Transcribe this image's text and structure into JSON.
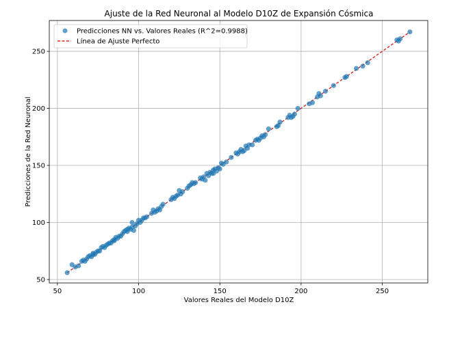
{
  "chart_data": {
    "type": "scatter",
    "title": "Ajuste de la Red Neuronal al Modelo D10Z de Expansión Cósmica",
    "xlabel": "Valores Reales del Modelo D10Z",
    "ylabel": "Predicciones de la Red Neuronal",
    "xlim": [
      45,
      278
    ],
    "ylim": [
      47,
      277
    ],
    "xticks": [
      50,
      100,
      150,
      200,
      250
    ],
    "yticks": [
      50,
      100,
      150,
      200,
      250
    ],
    "grid": true,
    "legend_position": "top-left",
    "series": [
      {
        "name": "Predicciones NN vs. Valores Reales (R^2=0.9988)",
        "kind": "scatter",
        "color": "#1f77b4",
        "x": [
          56,
          59,
          61,
          63,
          65,
          66,
          67,
          68,
          69,
          70,
          71,
          72,
          72,
          73,
          74,
          75,
          76,
          77,
          78,
          79,
          80,
          81,
          82,
          83,
          84,
          85,
          85,
          86,
          87,
          88,
          89,
          90,
          91,
          92,
          93,
          93,
          94,
          95,
          96,
          96,
          97,
          98,
          99,
          100,
          101,
          102,
          103,
          104,
          105,
          108,
          109,
          110,
          111,
          112,
          113,
          114,
          115,
          120,
          121,
          122,
          123,
          124,
          125,
          126,
          127,
          130,
          131,
          132,
          133,
          134,
          135,
          138,
          139,
          140,
          141,
          142,
          143,
          144,
          145,
          146,
          146,
          147,
          148,
          149,
          150,
          151,
          152,
          154,
          157,
          160,
          161,
          162,
          163,
          164,
          165,
          166,
          167,
          168,
          170,
          172,
          173,
          174,
          175,
          176,
          177,
          178,
          180,
          185,
          186,
          187,
          192,
          193,
          194,
          195,
          196,
          198,
          205,
          207,
          210,
          211,
          212,
          215,
          220,
          227,
          228,
          234,
          238,
          241,
          259,
          260,
          261,
          267
        ],
        "y": [
          56,
          63,
          61,
          62,
          66,
          67,
          66,
          68,
          70,
          71,
          70,
          72,
          73,
          72,
          74,
          75,
          75,
          78,
          79,
          78,
          80,
          81,
          82,
          82,
          84,
          85,
          84,
          87,
          86,
          88,
          88,
          90,
          92,
          93,
          94,
          92,
          95,
          94,
          96,
          100,
          93,
          97,
          99,
          102,
          100,
          102,
          104,
          104,
          105,
          108,
          111,
          109,
          110,
          112,
          111,
          114,
          116,
          120,
          122,
          121,
          123,
          124,
          128,
          125,
          127,
          130,
          132,
          133,
          135,
          134,
          135,
          139,
          138,
          140,
          137,
          143,
          141,
          144,
          143,
          146,
          143,
          147,
          145,
          148,
          147,
          152,
          151,
          153,
          157,
          161,
          160,
          162,
          164,
          162,
          163,
          167,
          165,
          168,
          168,
          172,
          173,
          172,
          174,
          176,
          175,
          177,
          182,
          184,
          185,
          188,
          192,
          194,
          192,
          193,
          195,
          200,
          204,
          205,
          210,
          213,
          211,
          215,
          220,
          227,
          228,
          235,
          237,
          240,
          260,
          259,
          261,
          267
        ]
      },
      {
        "name": "Línea de Ajuste Perfecto",
        "kind": "line",
        "style": "dashed",
        "color": "#d62728",
        "x": [
          56,
          267
        ],
        "y": [
          56,
          267
        ]
      }
    ]
  }
}
